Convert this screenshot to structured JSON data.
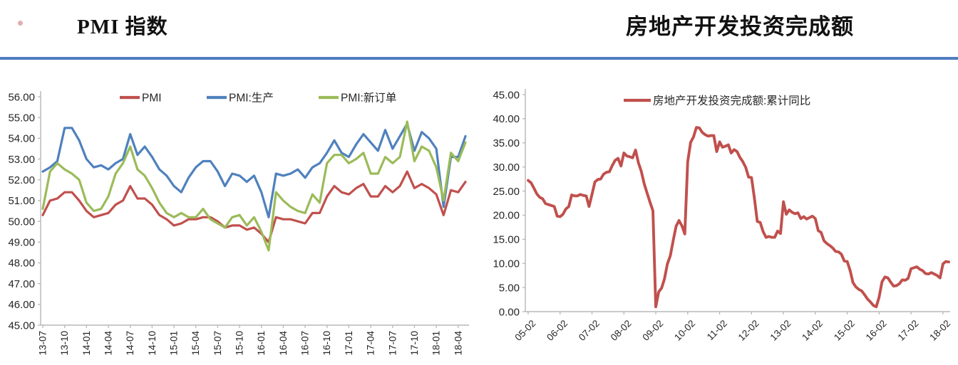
{
  "page": {
    "left_title": "PMI 指数",
    "right_title": "房地产开发投资完成额",
    "divider_color": "#4f7dbf",
    "bullet_color": "#d06a6a",
    "axis_color": "#b7b7b7",
    "text_color": "#262626"
  },
  "chart_data": [
    {
      "type": "line",
      "title": "PMI 指数",
      "legend_position": "top",
      "grid": false,
      "ylim": [
        45,
        56
      ],
      "ytick_step": 1,
      "x_tick_labels": [
        "13-07",
        "13-10",
        "14-01",
        "14-04",
        "14-07",
        "14-10",
        "15-01",
        "15-04",
        "15-07",
        "15-10",
        "16-01",
        "16-04",
        "16-07",
        "16-10",
        "17-01",
        "17-04",
        "17-07",
        "17-10",
        "18-01",
        "18-04"
      ],
      "x": [
        "13-07",
        "13-08",
        "13-09",
        "13-10",
        "13-11",
        "13-12",
        "14-01",
        "14-02",
        "14-03",
        "14-04",
        "14-05",
        "14-06",
        "14-07",
        "14-08",
        "14-09",
        "14-10",
        "14-11",
        "14-12",
        "15-01",
        "15-02",
        "15-03",
        "15-04",
        "15-05",
        "15-06",
        "15-07",
        "15-08",
        "15-09",
        "15-10",
        "15-11",
        "15-12",
        "16-01",
        "16-02",
        "16-03",
        "16-04",
        "16-05",
        "16-06",
        "16-07",
        "16-08",
        "16-09",
        "16-10",
        "16-11",
        "16-12",
        "17-01",
        "17-02",
        "17-03",
        "17-04",
        "17-05",
        "17-06",
        "17-07",
        "17-08",
        "17-09",
        "17-10",
        "17-11",
        "17-12",
        "18-01",
        "18-02",
        "18-03",
        "18-04",
        "18-05"
      ],
      "series": [
        {
          "name": "PMI",
          "color": "#c0504d",
          "values": [
            50.3,
            51.0,
            51.1,
            51.4,
            51.4,
            51.0,
            50.5,
            50.2,
            50.3,
            50.4,
            50.8,
            51.0,
            51.7,
            51.1,
            51.1,
            50.8,
            50.3,
            50.1,
            49.8,
            49.9,
            50.1,
            50.1,
            50.2,
            50.2,
            50.0,
            49.7,
            49.8,
            49.8,
            49.6,
            49.7,
            49.4,
            49.0,
            50.2,
            50.1,
            50.1,
            50.0,
            49.9,
            50.4,
            50.4,
            51.2,
            51.7,
            51.4,
            51.3,
            51.6,
            51.8,
            51.2,
            51.2,
            51.7,
            51.4,
            51.7,
            52.4,
            51.6,
            51.8,
            51.6,
            51.3,
            50.3,
            51.5,
            51.4,
            51.9
          ]
        },
        {
          "name": "PMI:生产",
          "color": "#4f81bd",
          "values": [
            52.4,
            52.6,
            52.9,
            54.5,
            54.5,
            53.9,
            53.0,
            52.6,
            52.7,
            52.5,
            52.8,
            53.0,
            54.2,
            53.2,
            53.6,
            53.1,
            52.5,
            52.2,
            51.7,
            51.4,
            52.1,
            52.6,
            52.9,
            52.9,
            52.4,
            51.7,
            52.3,
            52.2,
            51.9,
            52.2,
            51.4,
            50.2,
            52.3,
            52.2,
            52.3,
            52.5,
            52.1,
            52.6,
            52.8,
            53.3,
            53.9,
            53.3,
            53.1,
            53.7,
            54.2,
            53.8,
            53.4,
            54.4,
            53.5,
            54.1,
            54.7,
            53.4,
            54.3,
            54.0,
            53.5,
            50.7,
            53.1,
            53.1,
            54.1
          ]
        },
        {
          "name": "PMI:新订单",
          "color": "#9bbb59",
          "values": [
            50.6,
            52.4,
            52.8,
            52.5,
            52.3,
            52.0,
            50.9,
            50.5,
            50.6,
            51.2,
            52.3,
            52.8,
            53.6,
            52.5,
            52.2,
            51.6,
            50.9,
            50.4,
            50.2,
            50.4,
            50.2,
            50.2,
            50.6,
            50.1,
            49.9,
            49.7,
            50.2,
            50.3,
            49.8,
            50.2,
            49.5,
            48.6,
            51.4,
            51.0,
            50.7,
            50.5,
            50.4,
            51.3,
            50.9,
            52.8,
            53.2,
            53.2,
            52.8,
            53.0,
            53.3,
            52.3,
            52.3,
            53.1,
            52.8,
            53.1,
            54.8,
            52.9,
            53.6,
            53.4,
            52.6,
            51.0,
            53.3,
            52.9,
            53.8
          ]
        }
      ]
    },
    {
      "type": "line",
      "title": "房地产开发投资完成额",
      "legend_position": "top",
      "grid": false,
      "ylim": [
        0,
        45
      ],
      "ytick_step": 5,
      "x_tick_labels": [
        "05-02",
        "06-02",
        "07-02",
        "08-02",
        "09-02",
        "10-02",
        "11-02",
        "12-02",
        "13-02",
        "14-02",
        "15-02",
        "16-02",
        "17-02",
        "18-02"
      ],
      "x": [
        "05-02",
        "05-03",
        "05-04",
        "05-05",
        "05-06",
        "05-07",
        "05-08",
        "05-09",
        "05-10",
        "05-11",
        "05-12",
        "06-02",
        "06-03",
        "06-04",
        "06-05",
        "06-06",
        "06-07",
        "06-08",
        "06-09",
        "06-10",
        "06-11",
        "06-12",
        "07-02",
        "07-03",
        "07-04",
        "07-05",
        "07-06",
        "07-07",
        "07-08",
        "07-09",
        "07-10",
        "07-11",
        "07-12",
        "08-02",
        "08-03",
        "08-04",
        "08-05",
        "08-06",
        "08-07",
        "08-08",
        "08-09",
        "08-10",
        "08-11",
        "08-12",
        "09-02",
        "09-03",
        "09-04",
        "09-05",
        "09-06",
        "09-07",
        "09-08",
        "09-09",
        "09-10",
        "09-11",
        "09-12",
        "10-02",
        "10-03",
        "10-04",
        "10-05",
        "10-06",
        "10-07",
        "10-08",
        "10-09",
        "10-10",
        "10-11",
        "10-12",
        "11-02",
        "11-03",
        "11-04",
        "11-05",
        "11-06",
        "11-07",
        "11-08",
        "11-09",
        "11-10",
        "11-11",
        "11-12",
        "12-02",
        "12-03",
        "12-04",
        "12-05",
        "12-06",
        "12-07",
        "12-08",
        "12-09",
        "12-10",
        "12-11",
        "12-12",
        "13-02",
        "13-03",
        "13-04",
        "13-05",
        "13-06",
        "13-07",
        "13-08",
        "13-09",
        "13-10",
        "13-11",
        "13-12",
        "14-02",
        "14-03",
        "14-04",
        "14-05",
        "14-06",
        "14-07",
        "14-08",
        "14-09",
        "14-10",
        "14-11",
        "14-12",
        "15-02",
        "15-03",
        "15-04",
        "15-05",
        "15-06",
        "15-07",
        "15-08",
        "15-09",
        "15-10",
        "15-11",
        "15-12",
        "16-02",
        "16-03",
        "16-04",
        "16-05",
        "16-06",
        "16-07",
        "16-08",
        "16-09",
        "16-10",
        "16-11",
        "16-12",
        "17-02",
        "17-03",
        "17-04",
        "17-05",
        "17-06",
        "17-07",
        "17-08",
        "17-09",
        "17-10",
        "17-11",
        "17-12",
        "18-02",
        "18-03",
        "18-04"
      ],
      "series": [
        {
          "name": "房地产开发投资完成额:累计同比",
          "color": "#c0504d",
          "values": [
            27.2,
            26.7,
            25.6,
            24.4,
            23.7,
            23.4,
            22.4,
            22.2,
            22.0,
            21.8,
            19.8,
            19.7,
            20.2,
            21.3,
            21.8,
            24.2,
            24.0,
            24.0,
            24.3,
            24.1,
            24.0,
            21.8,
            24.3,
            26.9,
            27.4,
            27.5,
            28.5,
            28.9,
            29.0,
            30.3,
            31.4,
            31.8,
            30.2,
            32.9,
            32.3,
            32.1,
            31.9,
            33.5,
            30.9,
            29.1,
            26.5,
            24.6,
            22.7,
            20.9,
            1.0,
            4.1,
            4.9,
            6.8,
            9.9,
            11.6,
            14.7,
            17.7,
            18.9,
            17.8,
            16.1,
            31.1,
            35.1,
            36.2,
            38.2,
            38.1,
            37.2,
            36.7,
            36.4,
            36.5,
            36.5,
            33.2,
            35.2,
            34.1,
            34.3,
            34.6,
            32.9,
            33.6,
            33.2,
            32.0,
            31.1,
            29.9,
            27.9,
            27.8,
            23.5,
            18.7,
            18.5,
            16.6,
            15.4,
            15.6,
            15.4,
            15.4,
            16.7,
            16.2,
            22.8,
            20.2,
            21.1,
            20.6,
            20.3,
            20.5,
            19.3,
            19.7,
            19.2,
            19.5,
            19.8,
            19.3,
            16.8,
            16.4,
            14.7,
            14.1,
            13.7,
            13.2,
            12.5,
            12.4,
            11.9,
            10.5,
            10.4,
            8.5,
            6.0,
            5.1,
            4.6,
            4.3,
            3.5,
            2.6,
            2.0,
            1.3,
            1.0,
            3.0,
            6.2,
            7.2,
            7.0,
            6.1,
            5.3,
            5.4,
            5.8,
            6.6,
            6.5,
            6.9,
            8.9,
            9.1,
            9.3,
            8.8,
            8.5,
            7.9,
            7.8,
            8.1,
            7.8,
            7.5,
            7.0,
            9.9,
            10.4,
            10.3
          ]
        }
      ]
    }
  ]
}
